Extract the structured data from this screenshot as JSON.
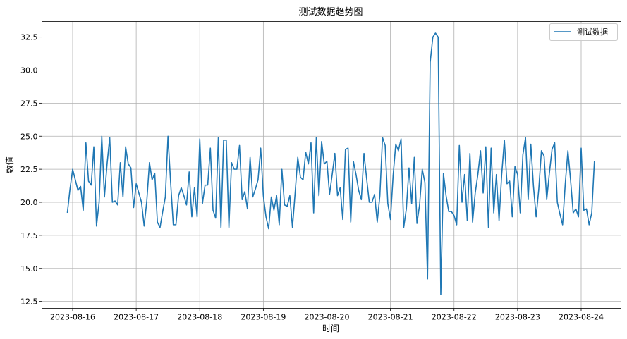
{
  "chart_data": {
    "type": "line",
    "title": "测试数据趋势图",
    "xlabel": "时间",
    "ylabel": "数值",
    "grid": true,
    "legend_position": "top-right",
    "series": [
      {
        "name": "测试数据",
        "color": "#1f77b4",
        "x": [
          "2023-08-15 22:00",
          "2023-08-15 23:00",
          "2023-08-16 00:00",
          "2023-08-16 01:00",
          "2023-08-16 02:00",
          "2023-08-16 03:00",
          "2023-08-16 04:00",
          "2023-08-16 05:00",
          "2023-08-16 06:00",
          "2023-08-16 07:00",
          "2023-08-16 08:00",
          "2023-08-16 09:00",
          "2023-08-16 10:00",
          "2023-08-16 11:00",
          "2023-08-16 12:00",
          "2023-08-16 13:00",
          "2023-08-16 14:00",
          "2023-08-16 15:00",
          "2023-08-16 16:00",
          "2023-08-16 17:00",
          "2023-08-16 18:00",
          "2023-08-16 19:00",
          "2023-08-16 20:00",
          "2023-08-16 21:00",
          "2023-08-16 22:00",
          "2023-08-16 23:00",
          "2023-08-17 00:00",
          "2023-08-17 01:00",
          "2023-08-17 02:00",
          "2023-08-17 03:00",
          "2023-08-17 04:00",
          "2023-08-17 05:00",
          "2023-08-17 06:00",
          "2023-08-17 07:00",
          "2023-08-17 08:00",
          "2023-08-17 09:00",
          "2023-08-17 10:00",
          "2023-08-17 11:00",
          "2023-08-17 12:00",
          "2023-08-17 13:00",
          "2023-08-17 14:00",
          "2023-08-17 15:00",
          "2023-08-17 16:00",
          "2023-08-17 17:00",
          "2023-08-17 18:00",
          "2023-08-17 19:00",
          "2023-08-17 20:00",
          "2023-08-17 21:00",
          "2023-08-17 22:00",
          "2023-08-17 23:00",
          "2023-08-18 00:00",
          "2023-08-18 01:00",
          "2023-08-18 02:00",
          "2023-08-18 03:00",
          "2023-08-18 04:00",
          "2023-08-18 05:00",
          "2023-08-18 06:00",
          "2023-08-18 07:00",
          "2023-08-18 08:00",
          "2023-08-18 09:00",
          "2023-08-18 10:00",
          "2023-08-18 11:00",
          "2023-08-18 12:00",
          "2023-08-18 13:00",
          "2023-08-18 14:00",
          "2023-08-18 15:00",
          "2023-08-18 16:00",
          "2023-08-18 17:00",
          "2023-08-18 18:00",
          "2023-08-18 19:00",
          "2023-08-18 20:00",
          "2023-08-18 21:00",
          "2023-08-18 22:00",
          "2023-08-18 23:00",
          "2023-08-19 00:00",
          "2023-08-19 01:00",
          "2023-08-19 02:00",
          "2023-08-19 03:00",
          "2023-08-19 04:00",
          "2023-08-19 05:00",
          "2023-08-19 06:00",
          "2023-08-19 07:00",
          "2023-08-19 08:00",
          "2023-08-19 09:00",
          "2023-08-19 10:00",
          "2023-08-19 11:00",
          "2023-08-19 12:00",
          "2023-08-19 13:00",
          "2023-08-19 14:00",
          "2023-08-19 15:00",
          "2023-08-19 16:00",
          "2023-08-19 17:00",
          "2023-08-19 18:00",
          "2023-08-19 19:00",
          "2023-08-19 20:00",
          "2023-08-19 21:00",
          "2023-08-19 22:00",
          "2023-08-19 23:00",
          "2023-08-20 00:00",
          "2023-08-20 01:00",
          "2023-08-20 02:00",
          "2023-08-20 03:00",
          "2023-08-20 04:00",
          "2023-08-20 05:00",
          "2023-08-20 06:00",
          "2023-08-20 07:00",
          "2023-08-20 08:00",
          "2023-08-20 09:00",
          "2023-08-20 10:00",
          "2023-08-20 11:00",
          "2023-08-20 12:00",
          "2023-08-20 13:00",
          "2023-08-20 14:00",
          "2023-08-20 15:00",
          "2023-08-20 16:00",
          "2023-08-20 17:00",
          "2023-08-20 18:00",
          "2023-08-20 19:00",
          "2023-08-20 20:00",
          "2023-08-20 21:00",
          "2023-08-20 22:00",
          "2023-08-20 23:00",
          "2023-08-21 00:00",
          "2023-08-21 01:00",
          "2023-08-21 02:00",
          "2023-08-21 03:00",
          "2023-08-21 04:00",
          "2023-08-21 05:00",
          "2023-08-21 06:00",
          "2023-08-21 07:00",
          "2023-08-21 08:00",
          "2023-08-21 09:00",
          "2023-08-21 10:00",
          "2023-08-21 11:00",
          "2023-08-21 12:00",
          "2023-08-21 13:00",
          "2023-08-21 14:00",
          "2023-08-21 15:00",
          "2023-08-21 16:00",
          "2023-08-21 17:00",
          "2023-08-21 18:00",
          "2023-08-21 19:00",
          "2023-08-21 20:00",
          "2023-08-21 21:00",
          "2023-08-21 22:00",
          "2023-08-21 23:00",
          "2023-08-22 00:00",
          "2023-08-22 01:00",
          "2023-08-22 02:00",
          "2023-08-22 03:00",
          "2023-08-22 04:00",
          "2023-08-22 05:00",
          "2023-08-22 06:00",
          "2023-08-22 07:00",
          "2023-08-22 08:00",
          "2023-08-22 09:00",
          "2023-08-22 10:00",
          "2023-08-22 11:00",
          "2023-08-22 12:00",
          "2023-08-22 13:00",
          "2023-08-22 14:00",
          "2023-08-22 15:00",
          "2023-08-22 16:00",
          "2023-08-22 17:00",
          "2023-08-22 18:00",
          "2023-08-22 19:00",
          "2023-08-22 20:00",
          "2023-08-22 21:00",
          "2023-08-22 22:00",
          "2023-08-22 23:00",
          "2023-08-23 00:00",
          "2023-08-23 01:00",
          "2023-08-23 02:00",
          "2023-08-23 03:00",
          "2023-08-23 04:00",
          "2023-08-23 05:00",
          "2023-08-23 06:00",
          "2023-08-23 07:00",
          "2023-08-23 08:00",
          "2023-08-23 09:00",
          "2023-08-23 10:00",
          "2023-08-23 11:00",
          "2023-08-23 12:00",
          "2023-08-23 13:00",
          "2023-08-23 14:00",
          "2023-08-23 15:00",
          "2023-08-23 16:00",
          "2023-08-23 17:00",
          "2023-08-23 18:00",
          "2023-08-23 19:00",
          "2023-08-23 20:00",
          "2023-08-23 21:00",
          "2023-08-23 22:00",
          "2023-08-23 23:00",
          "2023-08-24 00:00",
          "2023-08-24 01:00",
          "2023-08-24 02:00",
          "2023-08-24 03:00",
          "2023-08-24 04:00",
          "2023-08-24 05:00"
        ],
        "values": [
          19.2,
          21.0,
          22.5,
          21.7,
          20.9,
          21.2,
          19.4,
          24.5,
          21.6,
          21.3,
          24.2,
          18.2,
          20.0,
          25.0,
          20.4,
          22.9,
          24.9,
          20.0,
          20.1,
          19.8,
          23.0,
          20.4,
          24.2,
          22.9,
          22.6,
          19.6,
          21.4,
          20.7,
          20.0,
          18.2,
          20.1,
          23.0,
          21.7,
          22.2,
          18.5,
          18.1,
          19.3,
          20.4,
          25.0,
          21.5,
          18.3,
          18.3,
          20.5,
          21.1,
          20.5,
          19.8,
          22.3,
          18.9,
          21.1,
          18.9,
          24.8,
          19.9,
          21.3,
          21.3,
          24.1,
          19.4,
          18.8,
          24.9,
          18.1,
          24.7,
          24.7,
          18.1,
          23.0,
          22.5,
          22.5,
          24.3,
          20.2,
          20.8,
          19.5,
          23.4,
          20.4,
          21.0,
          21.7,
          24.1,
          20.5,
          18.9,
          18.0,
          20.4,
          19.4,
          20.5,
          18.3,
          22.5,
          19.8,
          19.7,
          20.5,
          18.1,
          20.7,
          23.4,
          21.9,
          21.7,
          23.8,
          22.9,
          24.5,
          19.2,
          24.9,
          20.5,
          24.6,
          22.9,
          23.1,
          20.6,
          22.1,
          23.7,
          20.5,
          21.1,
          18.7,
          24.0,
          24.1,
          18.5,
          23.1,
          22.1,
          20.9,
          20.2,
          23.7,
          21.8,
          20.0,
          20.0,
          20.6,
          18.5,
          20.5,
          24.9,
          24.3,
          19.9,
          18.7,
          22.0,
          24.4,
          23.9,
          24.8,
          18.1,
          19.5,
          22.6,
          19.9,
          23.4,
          18.4,
          19.8,
          22.5,
          21.5,
          14.2,
          30.6,
          32.5,
          32.8,
          32.5,
          13.0,
          22.2,
          20.5,
          19.3,
          19.3,
          19.0,
          18.3,
          24.3,
          20.0,
          22.1,
          18.6,
          23.7,
          18.5,
          20.7,
          22.1,
          23.9,
          20.7,
          24.2,
          18.1,
          24.1,
          19.2,
          22.1,
          18.6,
          22.1,
          24.7,
          21.4,
          21.6,
          18.9,
          22.7,
          22.1,
          19.2,
          23.6,
          24.9,
          20.2,
          24.4,
          21.2,
          18.9,
          21.0,
          23.9,
          23.5,
          20.2,
          22.2,
          24.0,
          24.5,
          20.0,
          19.1,
          18.3,
          21.4,
          23.9,
          21.7,
          19.2,
          19.5,
          18.9,
          24.1,
          19.4,
          19.5,
          18.3,
          19.2,
          23.1
        ]
      }
    ],
    "x_ticks": [
      "2023-08-16",
      "2023-08-17",
      "2023-08-18",
      "2023-08-19",
      "2023-08-20",
      "2023-08-21",
      "2023-08-22",
      "2023-08-23",
      "2023-08-24"
    ],
    "y_ticks": [
      "12.5",
      "15.0",
      "17.5",
      "20.0",
      "22.5",
      "25.0",
      "27.5",
      "30.0",
      "32.5"
    ],
    "ylim": [
      11.5,
      33.8
    ]
  }
}
